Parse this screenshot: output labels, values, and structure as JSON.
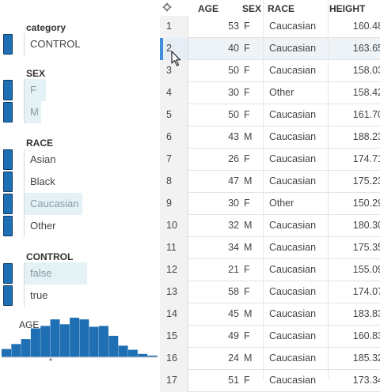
{
  "sidebar": {
    "category": {
      "title": "category",
      "items": [
        {
          "label": "CONTROL"
        }
      ]
    },
    "facets": [
      {
        "title": "SEX",
        "items": [
          {
            "label": "F",
            "selected": true
          },
          {
            "label": "M",
            "selected": true
          }
        ]
      },
      {
        "title": "RACE",
        "items": [
          {
            "label": "Asian",
            "selected": false
          },
          {
            "label": "Black",
            "selected": false
          },
          {
            "label": "Caucasian",
            "selected": true
          },
          {
            "label": "Other",
            "selected": false
          }
        ]
      },
      {
        "title": "CONTROL",
        "items": [
          {
            "label": "false",
            "selected": true
          },
          {
            "label": "true",
            "selected": false
          }
        ]
      }
    ],
    "histogram": {
      "title": "AGE",
      "bars": [
        10,
        16,
        22,
        35,
        38,
        46,
        40,
        48,
        46,
        37,
        38,
        26,
        14,
        9,
        4,
        2
      ],
      "color": "#1f6fb4"
    }
  },
  "table": {
    "columns": [
      "AGE",
      "SEX",
      "RACE",
      "HEIGHT"
    ],
    "selected_row": "2",
    "rows": [
      {
        "idx": "1",
        "age": "53",
        "sex": "F",
        "race": "Caucasian",
        "height": "160.48"
      },
      {
        "idx": "2",
        "age": "40",
        "sex": "F",
        "race": "Caucasian",
        "height": "163.65"
      },
      {
        "idx": "3",
        "age": "50",
        "sex": "F",
        "race": "Caucasian",
        "height": "158.03"
      },
      {
        "idx": "4",
        "age": "30",
        "sex": "F",
        "race": "Other",
        "height": "158.42"
      },
      {
        "idx": "5",
        "age": "50",
        "sex": "F",
        "race": "Caucasian",
        "height": "161.70"
      },
      {
        "idx": "6",
        "age": "43",
        "sex": "M",
        "race": "Caucasian",
        "height": "188.23"
      },
      {
        "idx": "7",
        "age": "26",
        "sex": "F",
        "race": "Caucasian",
        "height": "174.71"
      },
      {
        "idx": "8",
        "age": "47",
        "sex": "M",
        "race": "Caucasian",
        "height": "175.23"
      },
      {
        "idx": "9",
        "age": "30",
        "sex": "F",
        "race": "Other",
        "height": "150.29"
      },
      {
        "idx": "10",
        "age": "32",
        "sex": "M",
        "race": "Caucasian",
        "height": "180.30"
      },
      {
        "idx": "11",
        "age": "34",
        "sex": "M",
        "race": "Caucasian",
        "height": "175.35"
      },
      {
        "idx": "12",
        "age": "21",
        "sex": "F",
        "race": "Caucasian",
        "height": "155.09"
      },
      {
        "idx": "13",
        "age": "58",
        "sex": "F",
        "race": "Caucasian",
        "height": "174.07"
      },
      {
        "idx": "14",
        "age": "45",
        "sex": "M",
        "race": "Caucasian",
        "height": "183.83"
      },
      {
        "idx": "15",
        "age": "49",
        "sex": "F",
        "race": "Caucasian",
        "height": "160.83"
      },
      {
        "idx": "16",
        "age": "24",
        "sex": "M",
        "race": "Caucasian",
        "height": "185.32"
      },
      {
        "idx": "17",
        "age": "51",
        "sex": "F",
        "race": "Caucasian",
        "height": "173.34"
      }
    ]
  },
  "icons": {
    "settings": "gear-icon",
    "cursor": "mouse-pointer-icon"
  }
}
